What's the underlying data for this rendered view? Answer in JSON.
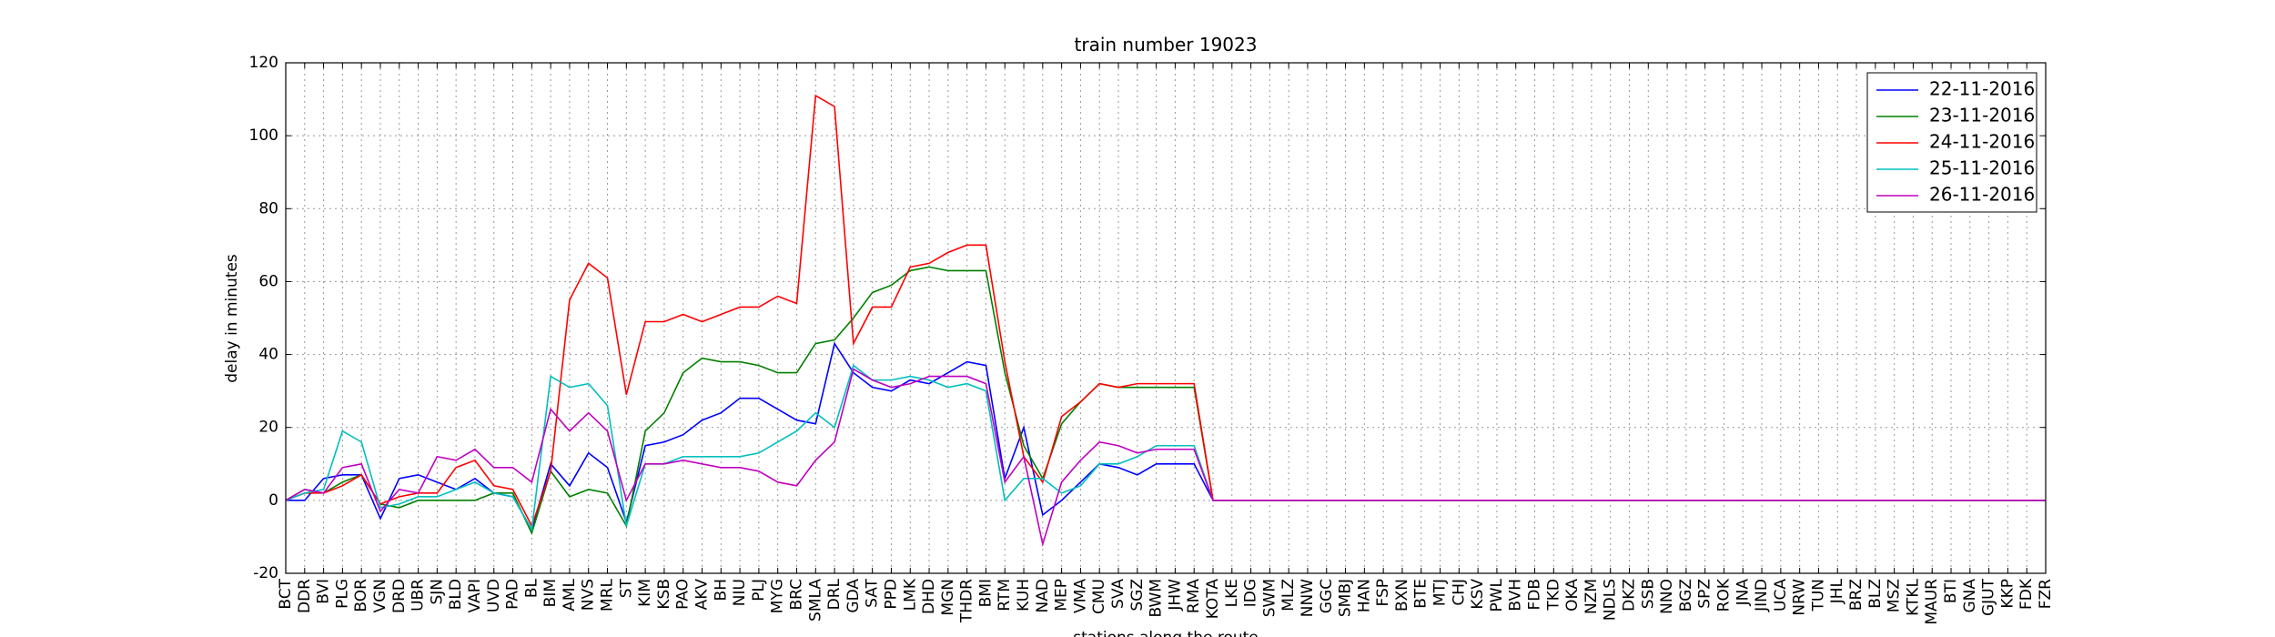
{
  "chart_data": {
    "type": "line",
    "title": "train number 19023",
    "xlabel": "stations along the route",
    "ylabel": "delay in minutes",
    "categories": [
      "BCT",
      "DDR",
      "BVI",
      "PLG",
      "BOR",
      "VGN",
      "DRD",
      "UBR",
      "SJN",
      "BLD",
      "VAPI",
      "UVD",
      "PAD",
      "BL",
      "BIM",
      "AML",
      "NVS",
      "MRL",
      "ST",
      "KIM",
      "KSB",
      "PAO",
      "AKV",
      "BH",
      "NIU",
      "PLJ",
      "MYG",
      "BRC",
      "SMLA",
      "DRL",
      "GDA",
      "SAT",
      "PPD",
      "LMK",
      "DHD",
      "MGN",
      "THDR",
      "BMI",
      "RTM",
      "KUH",
      "NAD",
      "MEP",
      "VMA",
      "CMU",
      "SVA",
      "SGZ",
      "BWM",
      "JHW",
      "RMA",
      "KOTA",
      "LKE",
      "IDG",
      "SWM",
      "MLZ",
      "NNW",
      "GGC",
      "SMBJ",
      "HAN",
      "FSP",
      "BXN",
      "BTE",
      "MTJ",
      "CHJ",
      "KSV",
      "PWL",
      "BVH",
      "FDB",
      "TKD",
      "OKA",
      "NZM",
      "NDLS",
      "DKZ",
      "SSB",
      "NNO",
      "BGZ",
      "SPZ",
      "ROK",
      "JNA",
      "JIND",
      "UCA",
      "NRW",
      "TUN",
      "JHL",
      "BRZ",
      "BLZ",
      "MSZ",
      "KTKL",
      "MAUR",
      "BTI",
      "GNA",
      "GJUT",
      "KKP",
      "FDK",
      "FZR"
    ],
    "series": [
      {
        "name": "22-11-2016",
        "color": "#0000ff",
        "values": [
          0,
          0,
          6,
          7,
          7,
          -5,
          6,
          7,
          5,
          3,
          6,
          2,
          1,
          -8,
          10,
          4,
          13,
          9,
          -6,
          15,
          16,
          18,
          22,
          24,
          28,
          28,
          25,
          22,
          21,
          43,
          35,
          31,
          30,
          33,
          32,
          35,
          38,
          37,
          6,
          20,
          -4,
          0,
          5,
          10,
          9,
          7,
          10,
          10,
          10,
          0,
          0,
          0,
          0,
          0,
          0,
          0,
          0,
          0,
          0,
          0,
          0,
          0,
          0,
          0,
          0,
          0,
          0,
          0,
          0,
          0,
          0,
          0,
          0,
          0,
          0,
          0,
          0,
          0,
          0,
          0,
          0,
          0,
          0,
          0,
          0,
          0,
          0,
          0,
          0,
          0,
          0,
          0,
          0,
          0
        ]
      },
      {
        "name": "23-11-2016",
        "color": "#008000",
        "values": [
          0,
          3,
          2,
          5,
          7,
          -1,
          -2,
          0,
          0,
          0,
          0,
          2,
          2,
          -9,
          8,
          1,
          3,
          2,
          -7,
          19,
          24,
          35,
          39,
          38,
          38,
          37,
          35,
          35,
          43,
          44,
          50,
          57,
          59,
          63,
          64,
          63,
          63,
          63,
          35,
          15,
          6,
          21,
          27,
          32,
          31,
          31,
          31,
          31,
          31,
          0,
          0,
          0,
          0,
          0,
          0,
          0,
          0,
          0,
          0,
          0,
          0,
          0,
          0,
          0,
          0,
          0,
          0,
          0,
          0,
          0,
          0,
          0,
          0,
          0,
          0,
          0,
          0,
          0,
          0,
          0,
          0,
          0,
          0,
          0,
          0,
          0,
          0,
          0,
          0,
          0,
          0,
          0,
          0,
          0
        ]
      },
      {
        "name": "24-11-2016",
        "color": "#ff0000",
        "values": [
          0,
          2,
          2,
          4,
          7,
          -1,
          1,
          2,
          2,
          9,
          11,
          4,
          3,
          -7,
          8,
          55,
          65,
          61,
          29,
          49,
          49,
          51,
          49,
          51,
          53,
          53,
          56,
          54,
          111,
          108,
          43,
          53,
          53,
          64,
          65,
          68,
          70,
          70,
          38,
          12,
          5,
          23,
          27,
          32,
          31,
          32,
          32,
          32,
          32,
          0,
          0,
          0,
          0,
          0,
          0,
          0,
          0,
          0,
          0,
          0,
          0,
          0,
          0,
          0,
          0,
          0,
          0,
          0,
          0,
          0,
          0,
          0,
          0,
          0,
          0,
          0,
          0,
          0,
          0,
          0,
          0,
          0,
          0,
          0,
          0,
          0,
          0,
          0,
          0,
          0,
          0,
          0,
          0,
          0
        ]
      },
      {
        "name": "25-11-2016",
        "color": "#00bfbf",
        "values": [
          0,
          2,
          3,
          19,
          16,
          -2,
          -1,
          1,
          1,
          3,
          5,
          2,
          1,
          -8,
          34,
          31,
          32,
          26,
          -7,
          10,
          10,
          12,
          12,
          12,
          12,
          13,
          16,
          19,
          24,
          20,
          37,
          33,
          33,
          34,
          33,
          31,
          32,
          30,
          0,
          6,
          6,
          2,
          4,
          10,
          10,
          12,
          15,
          15,
          15,
          0,
          0,
          0,
          0,
          0,
          0,
          0,
          0,
          0,
          0,
          0,
          0,
          0,
          0,
          0,
          0,
          0,
          0,
          0,
          0,
          0,
          0,
          0,
          0,
          0,
          0,
          0,
          0,
          0,
          0,
          0,
          0,
          0,
          0,
          0,
          0,
          0,
          0,
          0,
          0,
          0,
          0,
          0,
          0,
          0
        ]
      },
      {
        "name": "26-11-2016",
        "color": "#bf00bf",
        "values": [
          0,
          3,
          2,
          9,
          10,
          -3,
          3,
          2,
          12,
          11,
          14,
          9,
          9,
          5,
          25,
          19,
          24,
          19,
          0,
          10,
          10,
          11,
          10,
          9,
          9,
          8,
          5,
          4,
          11,
          16,
          36,
          33,
          31,
          32,
          34,
          34,
          34,
          32,
          5,
          12,
          -12,
          5,
          11,
          16,
          15,
          13,
          14,
          14,
          14,
          0,
          0,
          0,
          0,
          0,
          0,
          0,
          0,
          0,
          0,
          0,
          0,
          0,
          0,
          0,
          0,
          0,
          0,
          0,
          0,
          0,
          0,
          0,
          0,
          0,
          0,
          0,
          0,
          0,
          0,
          0,
          0,
          0,
          0,
          0,
          0,
          0,
          0,
          0,
          0,
          0,
          0,
          0,
          0,
          0
        ]
      }
    ],
    "ylim": [
      -20,
      120
    ],
    "yticks": [
      -20,
      0,
      20,
      40,
      60,
      80,
      100,
      120
    ],
    "grid": true,
    "legend": "upper right"
  }
}
